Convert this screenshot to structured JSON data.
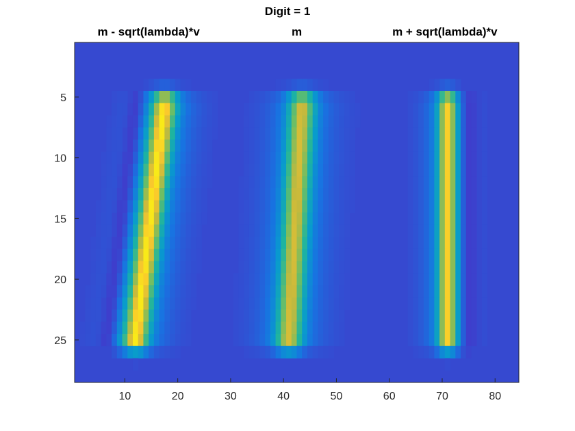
{
  "chart_data": {
    "type": "heatmap",
    "title": "Digit = 1",
    "panel_titles": [
      {
        "label": "m - sqrt(lambda)*v",
        "x_center": 14.5
      },
      {
        "label": "m",
        "x_center": 42.5
      },
      {
        "label": "m + sqrt(lambda)*v",
        "x_center": 70.5
      }
    ],
    "xlim": [
      0.5,
      84.5
    ],
    "ylim": [
      0.5,
      28.5
    ],
    "y_direction": "reversed",
    "x_ticks": [
      10,
      20,
      30,
      40,
      50,
      60,
      70,
      80
    ],
    "y_ticks": [
      5,
      10,
      15,
      20,
      25
    ],
    "grid": false,
    "colormap": "parula",
    "clim": [
      -0.15,
      1.0
    ],
    "panels": [
      {
        "name": "m - sqrt(lambda)*v",
        "x_offset": 0,
        "stroke_top": [
          17.5,
          5.5
        ],
        "stroke_bottom": [
          12.0,
          25.0
        ],
        "half_width": 1.6,
        "peak": 1.0,
        "shadow_side": -1
      },
      {
        "name": "m",
        "x_offset": 28,
        "stroke_top": [
          15.5,
          5.5
        ],
        "stroke_bottom": [
          13.0,
          25.0
        ],
        "half_width": 1.7,
        "peak": 0.85,
        "shadow_side": 0
      },
      {
        "name": "m + sqrt(lambda)*v",
        "x_offset": 56,
        "stroke_top": [
          15.0,
          5.5
        ],
        "stroke_bottom": [
          15.0,
          25.0
        ],
        "half_width": 1.2,
        "peak": 0.95,
        "shadow_side": 1
      }
    ]
  }
}
